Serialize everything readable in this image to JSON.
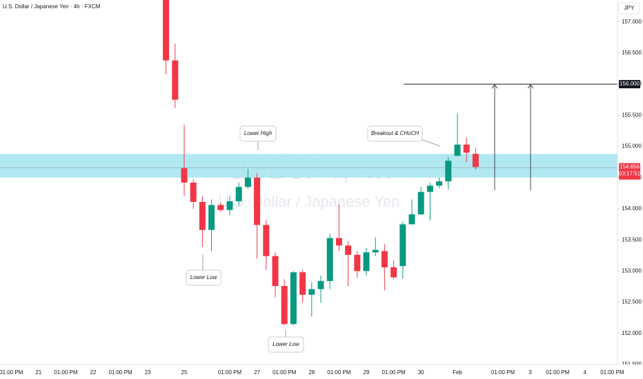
{
  "chart_data": {
    "type": "candlestick",
    "title": "U.S. Dollar / Japanese Yen · 4h · FXCM",
    "watermark": "USDJPY, 4h",
    "watermark_subtitle": "U.S. Dollar / Japanese Yen",
    "currency": "JPY",
    "categories": [
      null,
      "01:00 PM",
      null,
      null,
      "21",
      null,
      null,
      "01:00 PM",
      null,
      null,
      "22",
      null,
      null,
      "01:00 PM",
      null,
      null,
      "23",
      null,
      null,
      null,
      "25",
      null,
      null,
      null,
      null,
      "01:00 PM",
      null,
      null,
      "27",
      null,
      null,
      "01:00 PM",
      null,
      null,
      "28",
      null,
      null,
      "01:00 PM",
      null,
      null,
      "29",
      null,
      null,
      "01:00 PM",
      null,
      null,
      "30",
      null,
      null,
      null,
      "Feb",
      null,
      null,
      null,
      null,
      "01:00 PM",
      null,
      null,
      "3",
      null,
      null,
      "01:00 PM",
      null,
      null,
      "4",
      null,
      null,
      "01:00 PM"
    ],
    "open": [
      null,
      null,
      null,
      null,
      null,
      null,
      null,
      null,
      null,
      null,
      null,
      null,
      null,
      null,
      null,
      null,
      null,
      null,
      157.5,
      156.38,
      154.65,
      154.42,
      154.11,
      153.66,
      154.06,
      153.98,
      154.12,
      154.35,
      154.5,
      153.74,
      153.24,
      152.76,
      152.15,
      152.98,
      152.62,
      152.71,
      152.84,
      153.53,
      153.41,
      153.26,
      153.0,
      153.3,
      153.32,
      153.06,
      153.08,
      153.75,
      153.91,
      154.27,
      154.37,
      154.44,
      154.85,
      155.03,
      154.88,
      null,
      null,
      null,
      null,
      null,
      null,
      null,
      null,
      null,
      null,
      null,
      null,
      null,
      null,
      null
    ],
    "high": [
      null,
      null,
      null,
      null,
      null,
      null,
      null,
      null,
      null,
      null,
      null,
      null,
      null,
      null,
      null,
      null,
      null,
      null,
      157.6,
      156.65,
      155.35,
      154.47,
      154.2,
      154.15,
      154.1,
      154.2,
      154.42,
      154.64,
      154.57,
      153.82,
      153.3,
      152.87,
      153.0,
      153.02,
      152.82,
      152.93,
      153.6,
      154.07,
      153.48,
      153.32,
      153.37,
      153.54,
      153.43,
      153.17,
      153.79,
      154.15,
      154.35,
      154.42,
      154.5,
      154.83,
      155.53,
      155.14,
      154.98,
      null,
      null,
      null,
      null,
      null,
      null,
      null,
      null,
      null,
      null,
      null,
      null,
      null,
      null,
      null
    ],
    "low": [
      null,
      null,
      null,
      null,
      null,
      null,
      null,
      null,
      null,
      null,
      null,
      null,
      null,
      null,
      null,
      null,
      null,
      null,
      156.16,
      155.62,
      154.2,
      154.0,
      153.39,
      153.32,
      153.95,
      153.9,
      154.05,
      154.32,
      153.2,
      153.02,
      152.58,
      152.13,
      152.13,
      152.49,
      152.27,
      152.49,
      152.71,
      153.32,
      152.76,
      152.89,
      152.93,
      153.24,
      152.69,
      152.87,
      152.88,
      153.75,
      153.9,
      153.81,
      154.33,
      154.31,
      154.84,
      154.75,
      154.63,
      null,
      null,
      null,
      null,
      null,
      null,
      null,
      null,
      null,
      null,
      null,
      null,
      null,
      null,
      null
    ],
    "close": [
      null,
      null,
      null,
      null,
      null,
      null,
      null,
      null,
      null,
      null,
      null,
      null,
      null,
      null,
      null,
      null,
      null,
      null,
      156.38,
      155.75,
      154.42,
      154.11,
      153.66,
      154.06,
      153.98,
      154.12,
      154.35,
      154.5,
      153.74,
      153.24,
      152.76,
      152.15,
      152.98,
      152.62,
      152.71,
      152.84,
      153.53,
      153.41,
      153.26,
      153.0,
      153.3,
      153.34,
      153.06,
      152.9,
      153.75,
      153.91,
      154.27,
      154.37,
      154.44,
      154.77,
      155.03,
      154.9,
      154.67,
      null,
      null,
      null,
      null,
      null,
      null,
      null,
      null,
      null,
      null,
      null,
      null,
      null,
      null,
      null
    ],
    "up_color": "#089981",
    "down_color": "#f23645",
    "ylim": [
      151.5,
      157.35
    ],
    "yticks": [
      {
        "value": 151.5,
        "label": "151.500"
      },
      {
        "value": 152,
        "label": "152.000"
      },
      {
        "value": 152.5,
        "label": "152.500"
      },
      {
        "value": 153,
        "label": "153.000"
      },
      {
        "value": 153.5,
        "label": "153.500"
      },
      {
        "value": 154,
        "label": "154.000"
      },
      {
        "value": 154.5,
        "label": "154.500"
      },
      {
        "value": 155,
        "label": "155.000"
      },
      {
        "value": 155.5,
        "label": "155.500"
      },
      {
        "value": 156,
        "label": "156.000"
      },
      {
        "value": 156.5,
        "label": "156.500"
      },
      {
        "value": 157,
        "label": "157.000"
      }
    ],
    "zone": [
      154.5,
      154.88
    ],
    "zone_color": "#a9e6ef",
    "level": {
      "value": 156,
      "label": "156.000"
    },
    "last_price": {
      "value": 154.656,
      "label": "154.656"
    },
    "countdown": "03:17:51",
    "annotations": [
      "Lower High",
      "Lower Low",
      "Lower Low",
      "Breakout & CHoCH"
    ]
  }
}
